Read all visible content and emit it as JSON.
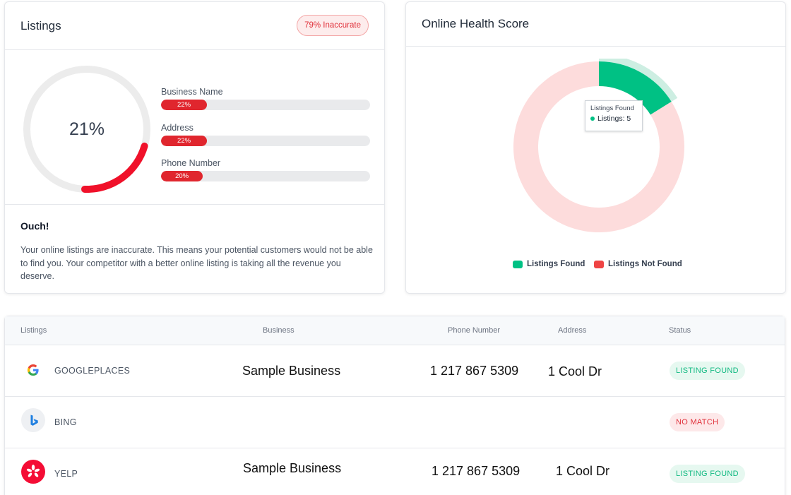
{
  "listings_card": {
    "title": "Listings",
    "badge": "79% Inaccurate",
    "score_label": "21%",
    "score_value": 21,
    "metrics": [
      {
        "label": "Business Name",
        "value_label": "22%",
        "value": 22
      },
      {
        "label": "Address",
        "value_label": "22%",
        "value": 22
      },
      {
        "label": "Phone Number",
        "value_label": "20%",
        "value": 20
      }
    ],
    "ouch_title": "Ouch!",
    "ouch_text": "Your online listings are inaccurate. This means your potential customers would not be able to find you. Your competitor with a better online listing is taking all the revenue you deserve."
  },
  "health_card": {
    "title": "Online Health Score",
    "tooltip": {
      "title": "Listings Found",
      "row": "Listings: 5"
    },
    "colors": {
      "found": "#00c184",
      "not_found": "#ef4444",
      "not_found_fill": "#fddcdc"
    }
  },
  "chart_data": {
    "type": "pie",
    "categories": [
      "Listings Found",
      "Listings Not Found"
    ],
    "values": [
      5,
      26
    ],
    "legend": "bottom"
  },
  "table": {
    "headers": {
      "listings": "Listings",
      "business": "Business",
      "phone": "Phone Number",
      "address": "Address",
      "status": "Status"
    },
    "rows": [
      {
        "source": "GOOGLEPLACES",
        "icon": "google-icon",
        "business": "Sample Business",
        "phone": "1 217 867 5309",
        "address": "1 Cool Dr",
        "status": "LISTING FOUND"
      },
      {
        "source": "BING",
        "icon": "bing-icon",
        "business": "",
        "phone": "",
        "address": "",
        "status": "NO MATCH"
      },
      {
        "source": "YELP",
        "icon": "yelp-icon",
        "business": "Sample Business",
        "phone": "1 217 867 5309",
        "address": "1 Cool Dr",
        "status": "LISTING FOUND"
      }
    ]
  }
}
